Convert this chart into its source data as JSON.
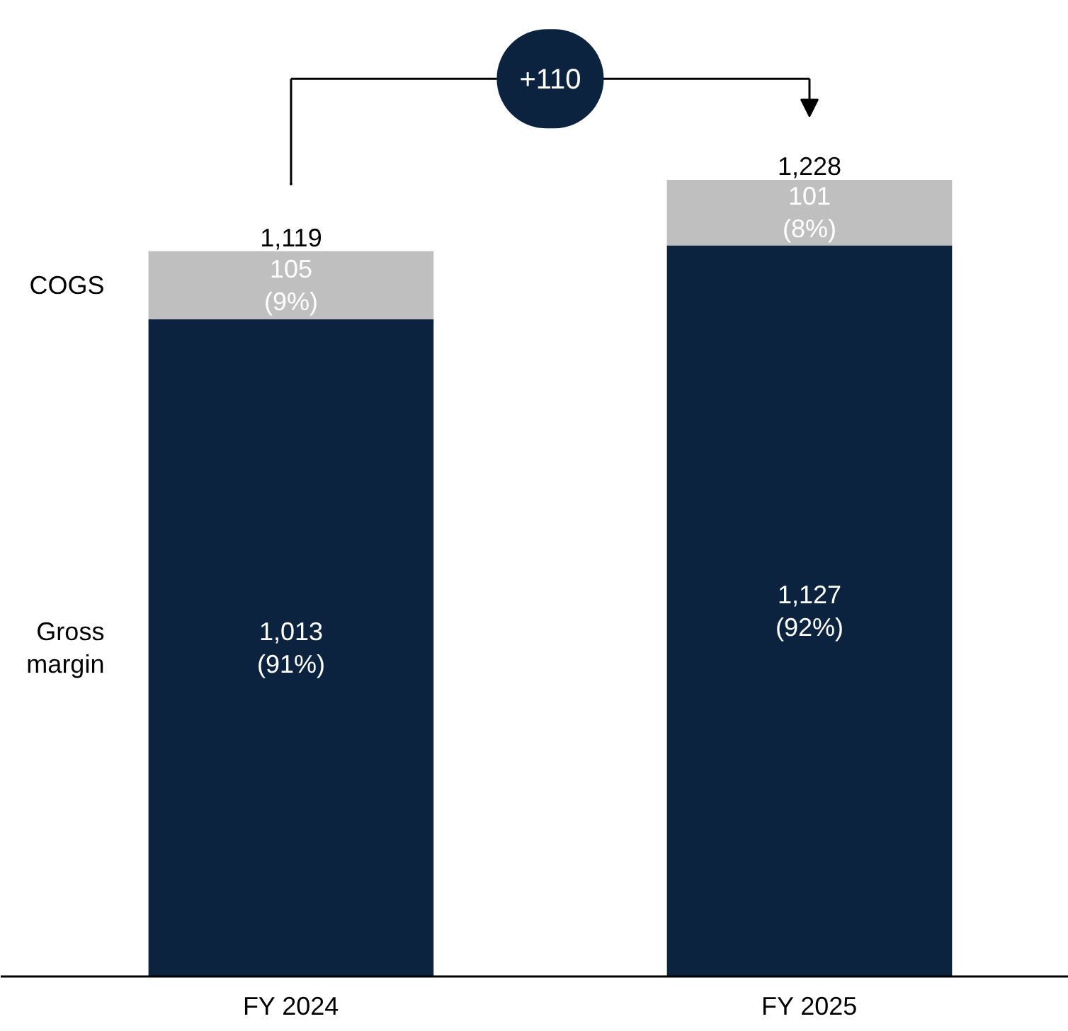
{
  "chart_data": {
    "type": "bar",
    "stacked": true,
    "categories": [
      "FY 2024",
      "FY 2025"
    ],
    "tick_labels": "x",
    "series": [
      {
        "name": "Gross margin",
        "color": "#0c2340",
        "values": [
          1013,
          1127
        ],
        "value_labels": [
          "1,013\n(91%)",
          "1,127\n(92%)"
        ]
      },
      {
        "name": "COGS",
        "color": "#bfbfbf",
        "values": [
          105,
          101
        ],
        "value_labels": [
          "105\n(9%)",
          "101\n(8%)"
        ]
      }
    ],
    "totals": [
      "1,119",
      "1,228"
    ],
    "annotations": [
      "+110"
    ]
  }
}
